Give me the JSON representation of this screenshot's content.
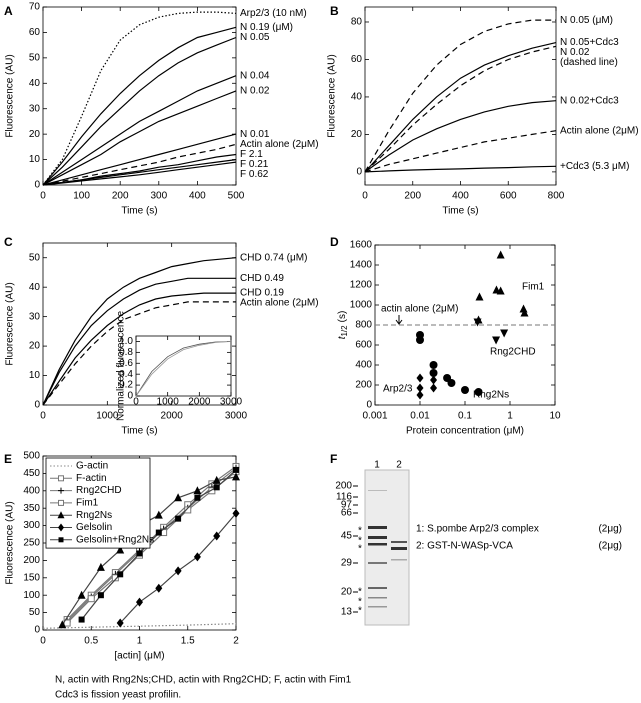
{
  "chart_data": [
    {
      "type": "line",
      "panel": "A",
      "xlabel": "Time (s)",
      "ylabel": "Fluorescence (AU)",
      "xlim": [
        0,
        500
      ],
      "xticks": [
        0,
        100,
        200,
        300,
        400,
        500
      ],
      "ylim": [
        0,
        70
      ],
      "yticks": [
        0,
        10,
        20,
        30,
        40,
        50,
        60,
        70
      ],
      "end_labels": true,
      "x": [
        0,
        50,
        100,
        150,
        200,
        250,
        300,
        350,
        400,
        450,
        500
      ],
      "series": [
        {
          "name": "Arp2/3 (10 nM)",
          "color": "#000",
          "style": "dotted",
          "values": [
            0,
            10,
            27,
            45,
            57,
            63,
            66,
            67.5,
            68,
            68,
            67.5
          ]
        },
        {
          "name": "N 0.19 (μM)",
          "color": "#000",
          "style": "solid",
          "values": [
            0,
            9,
            19,
            28,
            36,
            43,
            49,
            54,
            58,
            60,
            62
          ]
        },
        {
          "name": "N 0.05",
          "color": "#000",
          "style": "solid",
          "values": [
            0,
            7,
            15,
            23,
            30,
            37,
            43,
            48,
            52,
            55,
            58
          ]
        },
        {
          "name": "N 0.04",
          "color": "#000",
          "style": "solid",
          "values": [
            0,
            5,
            10,
            15,
            20,
            25,
            29,
            33,
            37,
            40,
            43
          ]
        },
        {
          "name": "N 0.02",
          "color": "#000",
          "style": "solid",
          "values": [
            0,
            4,
            8,
            12,
            17,
            21,
            25,
            28,
            31,
            34,
            37
          ]
        },
        {
          "name": "N 0.01",
          "color": "#000",
          "style": "solid",
          "values": [
            0,
            2,
            4,
            6,
            8,
            10,
            12,
            14,
            16,
            18,
            20
          ]
        },
        {
          "name": "Actin alone (2μM)",
          "color": "#000",
          "style": "dashed",
          "values": [
            0,
            1.5,
            3,
            4.5,
            6,
            7.5,
            9,
            11,
            12.5,
            14,
            16
          ]
        },
        {
          "name": "F 2.1",
          "color": "#000",
          "style": "solid",
          "values": [
            0,
            1,
            2,
            3.5,
            4.5,
            5.5,
            7,
            8,
            9.5,
            11,
            12
          ]
        },
        {
          "name": "F 0.21",
          "color": "#000",
          "style": "solid",
          "values": [
            0,
            1,
            2,
            3,
            4,
            5,
            6,
            7,
            8,
            9,
            10
          ]
        },
        {
          "name": "F 0.62",
          "color": "#000",
          "style": "solid",
          "values": [
            0,
            0.8,
            1.6,
            2.4,
            3.2,
            4,
            5,
            6,
            7,
            8,
            9
          ]
        }
      ]
    },
    {
      "type": "line",
      "panel": "B",
      "xlabel": "Time (s)",
      "ylabel": "Fluorescence (AU)",
      "xlim": [
        0,
        800
      ],
      "xticks": [
        0,
        200,
        400,
        600,
        800
      ],
      "ylim": [
        -7,
        88
      ],
      "yticks": [
        0,
        20,
        40,
        60,
        80
      ],
      "end_labels": true,
      "x": [
        0,
        100,
        200,
        300,
        400,
        500,
        600,
        700,
        800
      ],
      "series": [
        {
          "name": "N 0.05 (μM)",
          "color": "#000",
          "style": "dashed",
          "values": [
            0,
            22,
            42,
            57,
            68,
            75,
            79,
            81,
            81
          ]
        },
        {
          "name": "N 0.05+Cdc3",
          "color": "#000",
          "style": "solid",
          "values": [
            0,
            14,
            28,
            40,
            50,
            57,
            62,
            66,
            69
          ]
        },
        {
          "name": "N 0.02",
          "note": "(dashed line)",
          "color": "#000",
          "style": "dashed",
          "values": [
            0,
            12,
            25,
            36,
            46,
            54,
            60,
            64,
            67
          ]
        },
        {
          "name": "N 0.02+Cdc3",
          "color": "#000",
          "style": "solid",
          "values": [
            0,
            9,
            17,
            23,
            28,
            32,
            35,
            37,
            38
          ]
        },
        {
          "name": "Actin alone (2μM)",
          "color": "#000",
          "style": "dashed",
          "values": [
            0,
            4,
            7,
            10,
            13,
            16,
            18,
            20,
            22
          ]
        },
        {
          "name": "+Cdc3 (5.3 μM)",
          "color": "#000",
          "style": "solid",
          "values": [
            0,
            0.5,
            1,
            1.3,
            1.6,
            2,
            2.3,
            2.7,
            3
          ]
        }
      ]
    },
    {
      "type": "line",
      "panel": "C",
      "xlabel": "Time (s)",
      "ylabel": "Fluorescence (AU)",
      "xlim": [
        0,
        3000
      ],
      "xticks": [
        0,
        1000,
        2000,
        3000
      ],
      "ylim": [
        0,
        55
      ],
      "yticks": [
        0,
        10,
        20,
        30,
        40,
        50
      ],
      "end_labels": true,
      "x": [
        0,
        250,
        500,
        750,
        1000,
        1250,
        1500,
        1750,
        2000,
        2250,
        2500,
        2750,
        3000
      ],
      "series": [
        {
          "name": "CHD 0.74 (μM)",
          "color": "#000",
          "style": "solid",
          "values": [
            0,
            12,
            22,
            30,
            36,
            40,
            43,
            45,
            47,
            48,
            49,
            49.5,
            50
          ]
        },
        {
          "name": "CHD 0.49",
          "color": "#000",
          "style": "solid",
          "values": [
            0,
            11,
            20,
            27,
            32,
            36,
            39,
            41,
            42,
            43,
            43,
            43,
            43
          ]
        },
        {
          "name": "CHD 0.19",
          "color": "#000",
          "style": "solid",
          "values": [
            0,
            8,
            16,
            22,
            27,
            31,
            34,
            36,
            37,
            37.5,
            38,
            38,
            38
          ]
        },
        {
          "name": "Actin alone (2μM)",
          "color": "#000",
          "style": "dashed",
          "values": [
            0,
            7,
            14,
            20,
            25,
            29,
            31,
            33,
            34,
            35,
            35,
            35,
            35
          ]
        }
      ]
    },
    {
      "type": "line",
      "ylabel": "Normalized fluorescence",
      "xlim": [
        0,
        3000
      ],
      "xticks": [
        0,
        1000,
        2000,
        3000
      ],
      "ylim": [
        0,
        1.1
      ],
      "yticks": [
        0,
        0.2,
        0.4,
        0.6,
        0.8,
        {
          "value": 1,
          "label": "1.0"
        }
      ],
      "x": [
        0,
        500,
        1000,
        1500,
        2000,
        2500,
        3000
      ],
      "series": [
        {
          "color": "#555",
          "style": "solid",
          "values": [
            0,
            0.45,
            0.72,
            0.88,
            0.95,
            0.99,
            1.0
          ]
        },
        {
          "color": "#999",
          "style": "solid",
          "values": [
            0,
            0.4,
            0.68,
            0.85,
            0.93,
            0.98,
            1.0
          ]
        }
      ]
    },
    {
      "type": "scatter",
      "panel": "D",
      "xlabel": "Protein concentration (μM)",
      "ylabel": {
        "symbol": "t",
        "subscript": "1/2",
        "unit": "(s)"
      },
      "xscale": "log",
      "xlim": [
        0.001,
        10
      ],
      "xticks": [
        0.001,
        0.01,
        0.1,
        1,
        10
      ],
      "ylim": [
        0,
        1600
      ],
      "yticks": [
        0,
        200,
        400,
        600,
        800,
        1000,
        1200,
        1400,
        1600
      ],
      "reference_line": 800,
      "annotation": "actin alone (2μM)",
      "series": [
        {
          "name": "Arp2/3",
          "marker": "diamond",
          "color": "#000",
          "x": [
            0.01,
            0.01,
            0.01,
            0.02,
            0.02
          ],
          "values": [
            270,
            170,
            100,
            250,
            170
          ]
        },
        {
          "name": "Rng2Ns",
          "marker": "circle",
          "color": "#000",
          "x": [
            0.01,
            0.01,
            0.02,
            0.02,
            0.04,
            0.05,
            0.1,
            0.2
          ],
          "values": [
            700,
            650,
            400,
            320,
            270,
            220,
            150,
            130
          ]
        },
        {
          "name": "Fim1",
          "marker": "triangle",
          "color": "#000",
          "x": [
            0.2,
            0.21,
            0.5,
            0.62,
            0.62,
            2,
            2.1
          ],
          "values": [
            850,
            1080,
            1150,
            1500,
            1140,
            960,
            920
          ]
        },
        {
          "name": "Rng2CHD",
          "marker": "triangle-down",
          "color": "#000",
          "x": [
            0.19,
            0.49,
            0.74
          ],
          "values": [
            830,
            650,
            720
          ]
        }
      ]
    },
    {
      "type": "line",
      "panel": "E",
      "xlabel": "[actin] (μM)",
      "ylabel": "Fluorescence (AU)",
      "xlim": [
        0,
        2
      ],
      "xticks": [
        0,
        0.5,
        1,
        1.5,
        2
      ],
      "ylim": [
        0,
        500
      ],
      "yticks": [
        0,
        50,
        100,
        150,
        200,
        250,
        300,
        350,
        400,
        450,
        500
      ],
      "legend": "upper left",
      "marker_color": "#000",
      "series": [
        {
          "name": "G-actin",
          "color": "#888",
          "style": "dotted",
          "x": [
            0,
            0.5,
            1,
            1.5,
            2
          ],
          "values": [
            5,
            8,
            11,
            14,
            18
          ]
        },
        {
          "name": "F-actin",
          "color": "#777",
          "style": "solid",
          "marker": "square-open",
          "x": [
            0.25,
            0.5,
            0.75,
            1,
            1.25,
            1.5,
            1.75,
            2
          ],
          "values": [
            30,
            100,
            165,
            230,
            295,
            360,
            420,
            470
          ]
        },
        {
          "name": "Rng2CHD",
          "color": "#777",
          "style": "solid",
          "marker": "plus",
          "x": [
            0.25,
            0.5,
            0.75,
            1,
            1.25,
            1.5,
            1.75,
            2
          ],
          "values": [
            25,
            95,
            160,
            225,
            290,
            350,
            410,
            465
          ]
        },
        {
          "name": "Fim1",
          "color": "#777",
          "style": "solid",
          "marker": "square-open",
          "x": [
            0.25,
            0.5,
            0.75,
            1,
            1.25,
            1.5,
            1.75,
            2
          ],
          "values": [
            20,
            90,
            150,
            215,
            280,
            345,
            400,
            455
          ]
        },
        {
          "name": "Rng2Ns",
          "color": "#444",
          "style": "solid",
          "marker": "triangle",
          "x": [
            0.2,
            0.4,
            0.6,
            0.8,
            1,
            1.2,
            1.4,
            1.6,
            1.8,
            2
          ],
          "values": [
            15,
            100,
            180,
            230,
            300,
            330,
            380,
            400,
            430,
            440
          ]
        },
        {
          "name": "Gelsolin",
          "color": "#444",
          "style": "solid",
          "marker": "diamond",
          "x": [
            0.8,
            1,
            1.2,
            1.4,
            1.6,
            1.8,
            2
          ],
          "values": [
            20,
            80,
            120,
            170,
            210,
            270,
            335
          ]
        },
        {
          "name": "Gelsolin+Rng2Ns",
          "color": "#444",
          "style": "solid",
          "marker": "square",
          "x": [
            0.4,
            0.6,
            0.8,
            1,
            1.2,
            1.4,
            1.6,
            1.8,
            2
          ],
          "values": [
            30,
            100,
            160,
            220,
            280,
            320,
            380,
            410,
            460
          ]
        }
      ]
    }
  ],
  "gel": {
    "panel": "F",
    "lanes": [
      "1",
      "2"
    ],
    "markers": [
      "200",
      "116",
      "97",
      "66",
      "45",
      "29",
      "20",
      "13"
    ],
    "band_mark": "*",
    "legend": [
      {
        "text": "1: S.pombe Arp2/3 complex",
        "amount": "(2μg)"
      },
      {
        "text": "2: GST-N-WASp-VCA",
        "amount": "(2μg)"
      }
    ]
  },
  "caption": [
    "N, actin with Rng2Ns;CHD, actin with Rng2CHD; F, actin with Fim1",
    "Cdc3 is fission yeast profilin."
  ]
}
